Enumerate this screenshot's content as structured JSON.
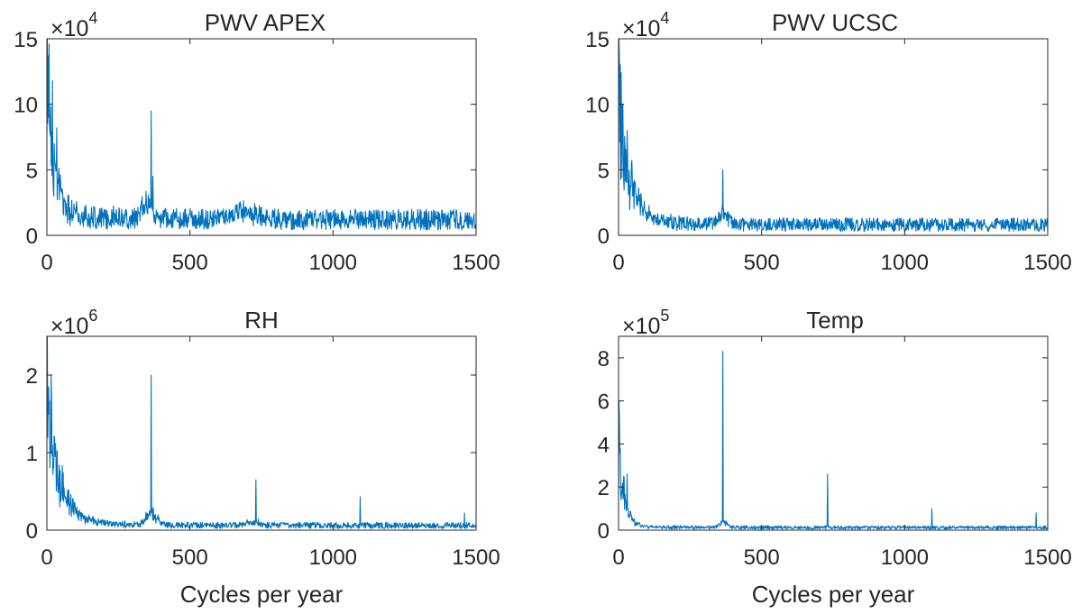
{
  "chart_data": [
    {
      "type": "line",
      "title": "PWV APEX",
      "xlabel": "",
      "ylabel": "",
      "exponent_label": "×10",
      "exponent_power": "4",
      "xlim": [
        0,
        1500
      ],
      "ylim": [
        0,
        15
      ],
      "xticks": [
        0,
        500,
        1000,
        1500
      ],
      "yticks": [
        0,
        5,
        10,
        15
      ],
      "xtick_labels": [
        "0",
        "500",
        "1000",
        "1500"
      ],
      "ytick_labels": [
        "0",
        "5",
        "10",
        "15"
      ],
      "color": "#0072BD",
      "baseline": 1.2,
      "noise": 0.9,
      "low_freq_peak": 14.8,
      "low_freq_decay": 28,
      "features": [
        {
          "x": 2,
          "y": 15
        },
        {
          "x": 8,
          "y": 14.6
        },
        {
          "x": 20,
          "y": 11.8
        },
        {
          "x": 35,
          "y": 8.2
        },
        {
          "x": 330,
          "y": 2.6
        },
        {
          "x": 365,
          "y": 9.5
        },
        {
          "x": 370,
          "y": 4.5
        },
        {
          "x": 740,
          "y": 1.6
        },
        {
          "x": 1090,
          "y": 1.0
        }
      ],
      "humps": [
        {
          "x": 350,
          "width": 25,
          "height": 1.5
        },
        {
          "x": 700,
          "width": 60,
          "height": 0.7
        }
      ]
    },
    {
      "type": "line",
      "title": "PWV UCSC",
      "xlabel": "",
      "ylabel": "",
      "exponent_label": "×10",
      "exponent_power": "4",
      "xlim": [
        0,
        1500
      ],
      "ylim": [
        0,
        15
      ],
      "xticks": [
        0,
        500,
        1000,
        1500
      ],
      "yticks": [
        0,
        5,
        10,
        15
      ],
      "xtick_labels": [
        "0",
        "500",
        "1000",
        "1500"
      ],
      "ytick_labels": [
        "0",
        "5",
        "10",
        "15"
      ],
      "color": "#0072BD",
      "baseline": 0.8,
      "noise": 0.6,
      "low_freq_peak": 14.5,
      "low_freq_decay": 40,
      "features": [
        {
          "x": 2,
          "y": 15
        },
        {
          "x": 15,
          "y": 10
        },
        {
          "x": 30,
          "y": 8
        },
        {
          "x": 365,
          "y": 5
        },
        {
          "x": 735,
          "y": 1.0
        }
      ],
      "humps": [
        {
          "x": 365,
          "width": 30,
          "height": 0.8
        }
      ]
    },
    {
      "type": "line",
      "title": "RH",
      "xlabel": "Cycles per year",
      "ylabel": "",
      "exponent_label": "×10",
      "exponent_power": "6",
      "xlim": [
        0,
        1500
      ],
      "ylim": [
        0,
        2.5
      ],
      "xticks": [
        0,
        500,
        1000,
        1500
      ],
      "yticks": [
        0,
        1,
        2
      ],
      "xtick_labels": [
        "0",
        "500",
        "1000",
        "1500"
      ],
      "ytick_labels": [
        "0",
        "1",
        "2"
      ],
      "color": "#0072BD",
      "baseline": 0.06,
      "noise": 0.09,
      "low_freq_peak": 2.5,
      "low_freq_decay": 45,
      "features": [
        {
          "x": 2,
          "y": 2.5
        },
        {
          "x": 15,
          "y": 2.0
        },
        {
          "x": 365,
          "y": 2.0
        },
        {
          "x": 730,
          "y": 0.65
        },
        {
          "x": 1095,
          "y": 0.43
        },
        {
          "x": 1460,
          "y": 0.22
        }
      ],
      "humps": [
        {
          "x": 365,
          "width": 25,
          "height": 0.2
        },
        {
          "x": 720,
          "width": 30,
          "height": 0.06
        }
      ]
    },
    {
      "type": "line",
      "title": "Temp",
      "xlabel": "Cycles per year",
      "ylabel": "",
      "exponent_label": "×10",
      "exponent_power": "5",
      "xlim": [
        0,
        1500
      ],
      "ylim": [
        0,
        9
      ],
      "xticks": [
        0,
        500,
        1000,
        1500
      ],
      "yticks": [
        0,
        2,
        4,
        6,
        8
      ],
      "xtick_labels": [
        "0",
        "500",
        "1000",
        "1500"
      ],
      "ytick_labels": [
        "0",
        "2",
        "4",
        "6",
        "8"
      ],
      "color": "#0072BD",
      "baseline": 0.12,
      "noise": 0.1,
      "low_freq_peak": 6.0,
      "low_freq_decay": 20,
      "features": [
        {
          "x": 2,
          "y": 6.0
        },
        {
          "x": 18,
          "y": 2.5
        },
        {
          "x": 30,
          "y": 2.6
        },
        {
          "x": 365,
          "y": 8.3
        },
        {
          "x": 730,
          "y": 2.6
        },
        {
          "x": 1095,
          "y": 1.0
        },
        {
          "x": 1460,
          "y": 0.8
        }
      ],
      "humps": [
        {
          "x": 365,
          "width": 20,
          "height": 0.3
        }
      ]
    }
  ]
}
